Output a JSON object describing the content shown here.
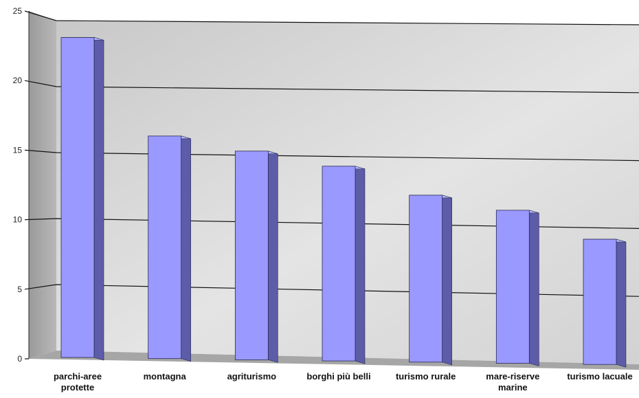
{
  "chart_data": {
    "type": "bar",
    "style": "3d-column",
    "categories": [
      [
        "parchi-aree",
        "protette"
      ],
      [
        "montagna"
      ],
      [
        "agriturismo"
      ],
      [
        "borghi più belli"
      ],
      [
        "turismo rurale"
      ],
      [
        "mare-riserve",
        "marine"
      ],
      [
        "turismo lacuale"
      ]
    ],
    "values": [
      23,
      16,
      15,
      14,
      12,
      11,
      9
    ],
    "ylim": [
      0,
      25
    ],
    "yticks": [
      0,
      5,
      10,
      15,
      20,
      25
    ],
    "grid": true,
    "colors": {
      "bar_front": "#9999ff",
      "bar_side": "#5c5ca8",
      "bar_top": "#b8b8ff",
      "wall": "#d9d9d9",
      "floor": "#a6a6a6"
    }
  }
}
